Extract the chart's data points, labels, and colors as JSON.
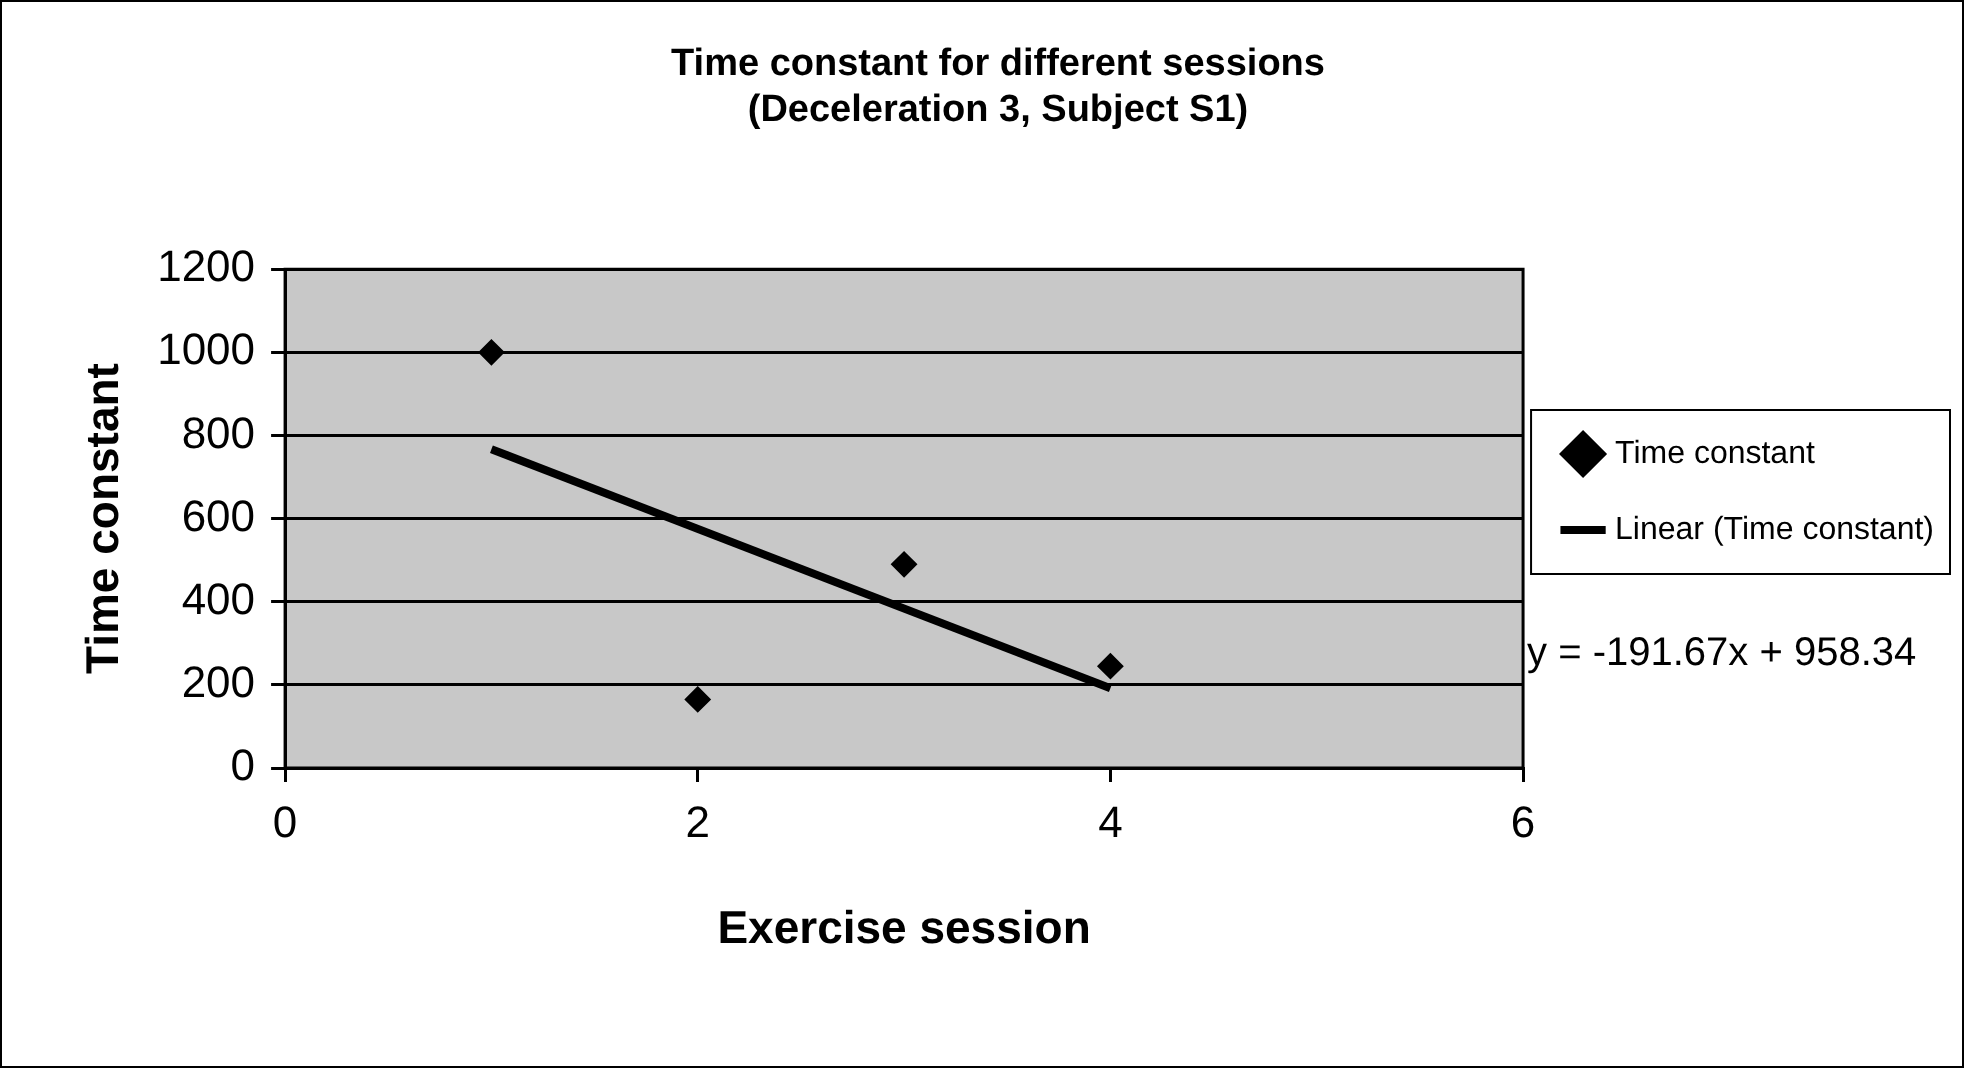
{
  "chart_data": {
    "type": "scatter",
    "title": "Time constant for different sessions\n(Deceleration 3, Subject S1)",
    "xlabel": "Exercise session",
    "ylabel": "Time constant",
    "x": [
      1,
      2,
      3,
      4
    ],
    "series": [
      {
        "name": "Time constant",
        "color": "#000000",
        "values": [
          1000,
          165,
          490,
          245
        ],
        "marker": "diamond"
      },
      {
        "name": "Linear (Time constant)",
        "type": "line",
        "color": "#000000",
        "x": [
          1,
          4
        ],
        "values": [
          767,
          192
        ],
        "marker": "none",
        "line_style": "solid"
      }
    ],
    "xlim": [
      0,
      6
    ],
    "xticks": [
      0,
      2,
      4,
      6
    ],
    "ylim": [
      0,
      1200
    ],
    "yticks": [
      0,
      200,
      400,
      600,
      800,
      1000,
      1200
    ],
    "grid": "y",
    "legend": "right",
    "annotations": [
      "y = -191.67x + 958.34"
    ]
  }
}
